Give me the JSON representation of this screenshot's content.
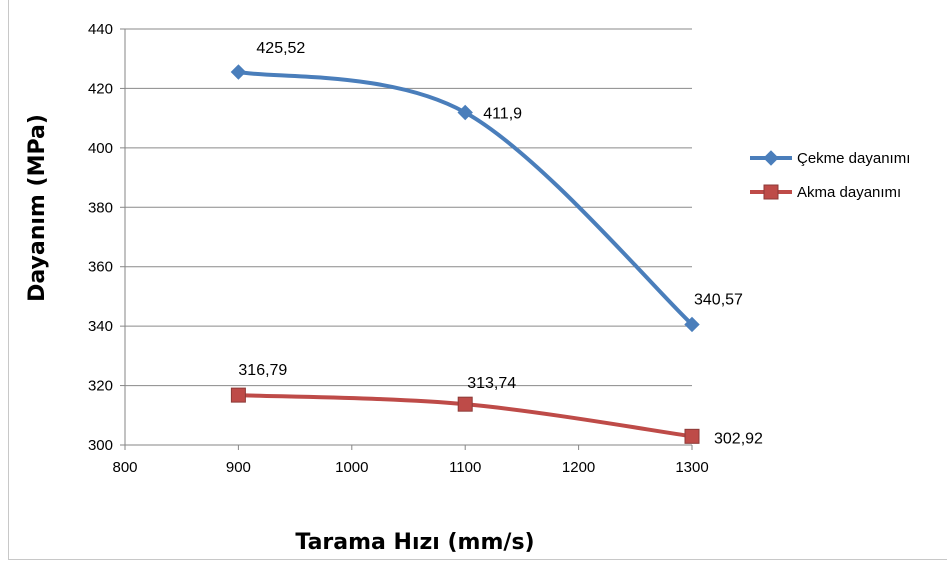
{
  "chart_data": {
    "type": "line",
    "title": "",
    "xlabel": "Tarama Hızı (mm/s)",
    "ylabel": "Dayanım (MPa)",
    "xlim": [
      800,
      1300
    ],
    "ylim": [
      300,
      440
    ],
    "xticks": [
      800,
      900,
      1000,
      1100,
      1200,
      1300
    ],
    "yticks": [
      300,
      320,
      340,
      360,
      380,
      400,
      420,
      440
    ],
    "grid": "horizontal",
    "legend_position": "right",
    "smooth": true,
    "series": [
      {
        "name": "Çekme dayanımı",
        "color": "#4a7ebb",
        "marker": "diamond",
        "x": [
          900,
          1100,
          1300
        ],
        "y": [
          425.52,
          411.9,
          340.57
        ],
        "labels": [
          "425,52",
          "411,9",
          "340,57"
        ]
      },
      {
        "name": "Akma dayanımı",
        "color": "#be4b48",
        "marker": "square",
        "x": [
          900,
          1100,
          1300
        ],
        "y": [
          316.79,
          313.74,
          302.92
        ],
        "labels": [
          "316,79",
          "313,74",
          "302,92"
        ]
      }
    ]
  }
}
